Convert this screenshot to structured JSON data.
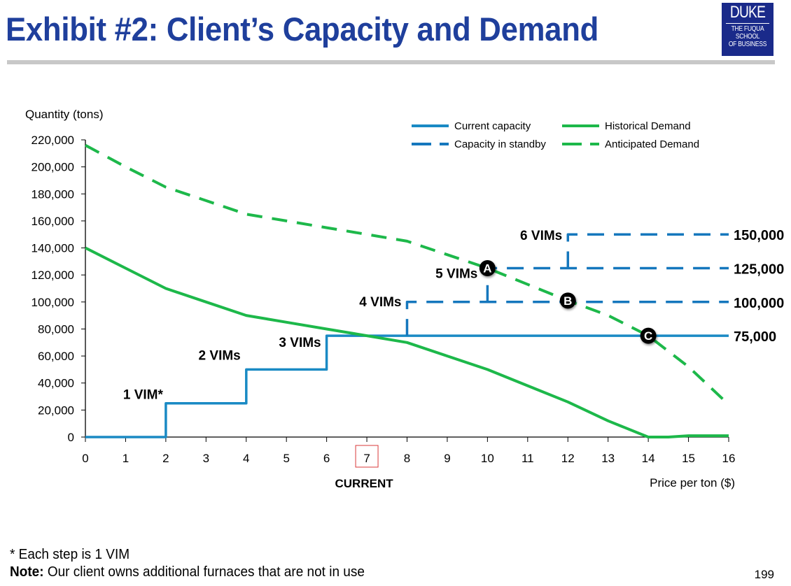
{
  "header": {
    "title": "Exhibit #2: Client’s Capacity and Demand",
    "logo": {
      "line1": "DUKE",
      "line2": "THE FUQUA",
      "line3": "SCHOOL",
      "line4": "OF BUSINESS"
    }
  },
  "footer": {
    "footnote": "*  Each step is 1 VIM",
    "note_label": "Note:",
    "note_text": " Our client owns additional furnaces that are not in use",
    "page_number": "199"
  },
  "colors": {
    "capacity": "#1a8ac4",
    "standby": "#1577bd",
    "demand": "#1db84a",
    "highlight_box": "#d9383a",
    "title": "#1f3f9c"
  },
  "chart_data": {
    "type": "line",
    "title": "Exhibit #2: Client’s Capacity and Demand",
    "xlabel": "Price per ton ($)",
    "ylabel": "Quantity (tons)",
    "xlim": [
      0,
      16
    ],
    "ylim": [
      0,
      220000
    ],
    "x_ticks": [
      0,
      1,
      2,
      3,
      4,
      5,
      6,
      7,
      8,
      9,
      10,
      11,
      12,
      13,
      14,
      15,
      16
    ],
    "y_ticks": [
      0,
      20000,
      40000,
      60000,
      80000,
      100000,
      120000,
      140000,
      160000,
      180000,
      200000,
      220000
    ],
    "y_tick_labels": [
      "0",
      "20,000",
      "40,000",
      "60,000",
      "80,000",
      "100,000",
      "120,000",
      "140,000",
      "160,000",
      "180,000",
      "200,000",
      "220,000"
    ],
    "grid": false,
    "legend": {
      "placement": "top-right",
      "entries": [
        {
          "name": "Current capacity",
          "style": "solid",
          "color": "#1a8ac4"
        },
        {
          "name": "Historical Demand",
          "style": "solid",
          "color": "#1db84a"
        },
        {
          "name": "Capacity in standby",
          "style": "dashed",
          "color": "#1577bd"
        },
        {
          "name": "Anticipated Demand",
          "style": "dashed",
          "color": "#1db84a"
        }
      ]
    },
    "highlighted_x": {
      "value": 7,
      "label": "CURRENT"
    },
    "series": [
      {
        "name": "Current capacity",
        "style": "solid",
        "x": [
          0,
          2,
          2,
          4,
          4,
          6,
          6,
          16
        ],
        "y": [
          0,
          0,
          25000,
          25000,
          50000,
          50000,
          75000,
          75000
        ]
      },
      {
        "name": "Capacity in standby (4 VIMs)",
        "style": "dashed",
        "x": [
          8,
          8,
          16
        ],
        "y": [
          75000,
          100000,
          100000
        ]
      },
      {
        "name": "Capacity in standby (5 VIMs)",
        "style": "dashed",
        "x": [
          10,
          10,
          16
        ],
        "y": [
          100000,
          125000,
          125000
        ]
      },
      {
        "name": "Capacity in standby (6 VIMs)",
        "style": "dashed",
        "x": [
          12,
          12,
          16
        ],
        "y": [
          125000,
          150000,
          150000
        ]
      },
      {
        "name": "Historical Demand",
        "style": "solid",
        "x": [
          0,
          1,
          2,
          3,
          4,
          5,
          6,
          7,
          8,
          9,
          10,
          11,
          12,
          13,
          14,
          14.5,
          15,
          16
        ],
        "y": [
          140000,
          125000,
          110000,
          100000,
          90000,
          85000,
          80000,
          75000,
          70000,
          60000,
          50000,
          38000,
          26000,
          12000,
          0,
          0,
          1000,
          1000
        ]
      },
      {
        "name": "Anticipated Demand",
        "style": "dashed",
        "x": [
          0,
          1,
          2,
          3,
          4,
          5,
          6,
          7,
          8,
          9,
          10,
          11,
          12,
          13,
          14,
          15,
          16
        ],
        "y": [
          216000,
          200000,
          185000,
          175000,
          165000,
          160000,
          155000,
          150000,
          145000,
          135000,
          125000,
          113000,
          101000,
          90000,
          75000,
          52000,
          24000
        ]
      }
    ],
    "step_labels": [
      {
        "text": "1 VIM*",
        "x": 2,
        "y": 25000
      },
      {
        "text": "2 VIMs",
        "x": 4,
        "y": 50000
      },
      {
        "text": "3 VIMs",
        "x": 6,
        "y": 75000
      },
      {
        "text": "4 VIMs",
        "x": 8,
        "y": 100000
      },
      {
        "text": "5 VIMs",
        "x": 10,
        "y": 125000
      },
      {
        "text": "6 VIMs",
        "x": 12,
        "y": 150000
      }
    ],
    "level_labels": [
      {
        "text": "150,000",
        "y": 150000
      },
      {
        "text": "125,000",
        "y": 125000
      },
      {
        "text": "100,000",
        "y": 100000
      },
      {
        "text": "75,000",
        "y": 75000
      }
    ],
    "annotations": [
      {
        "text": "A",
        "x": 10,
        "y": 125000
      },
      {
        "text": "B",
        "x": 12,
        "y": 101000
      },
      {
        "text": "C",
        "x": 14,
        "y": 75000
      }
    ]
  }
}
